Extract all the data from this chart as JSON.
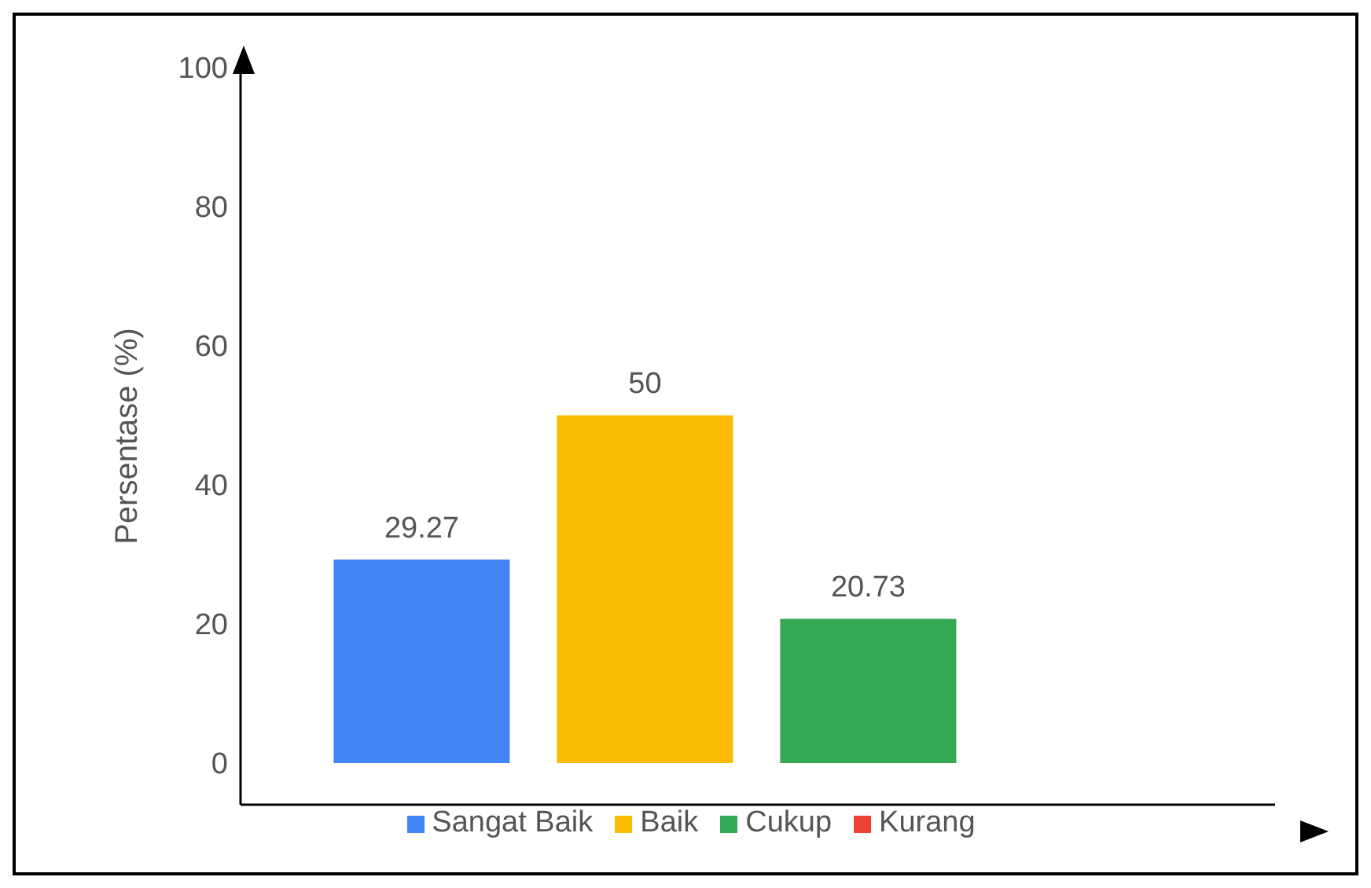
{
  "chart_data": {
    "type": "bar",
    "ylabel": "Persentase (%)",
    "categories": [
      null
    ],
    "series": [
      {
        "name": "Sangat Baik",
        "color": "#4285f4",
        "values": [
          29.27
        ],
        "value_labels": [
          "29.27"
        ]
      },
      {
        "name": "Baik",
        "color": "#fbbc04",
        "values": [
          50
        ],
        "value_labels": [
          "50"
        ]
      },
      {
        "name": "Cukup",
        "color": "#34a853",
        "values": [
          20.73
        ],
        "value_labels": [
          "20.73"
        ]
      },
      {
        "name": "Kurang",
        "color": "#ea4335",
        "values": [
          0
        ],
        "value_labels": [
          null
        ]
      }
    ],
    "ylim": [
      -6,
      100
    ],
    "yticks": [
      0,
      20,
      40,
      60,
      80,
      100
    ],
    "tick_labels": "y",
    "legend": "bottom"
  }
}
